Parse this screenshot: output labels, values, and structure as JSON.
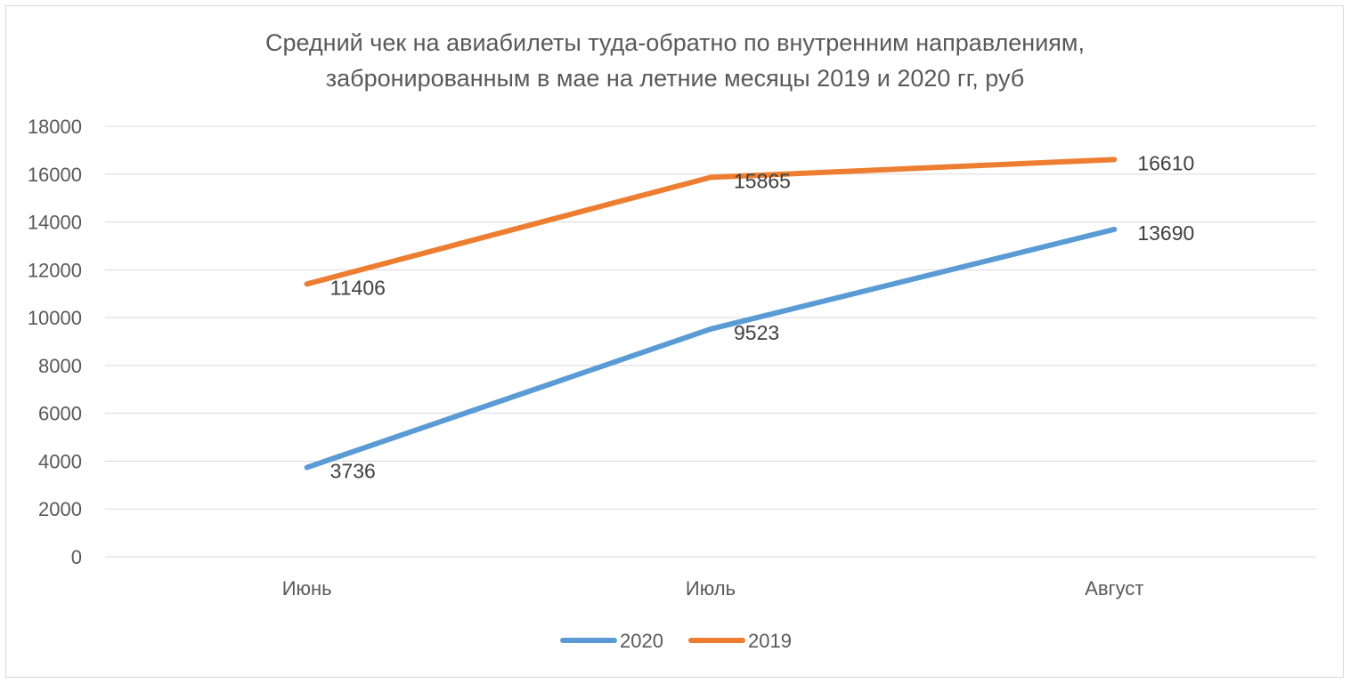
{
  "chart_data": {
    "type": "line",
    "title": "Средний чек на авиабилеты туда-обратно по внутренним направлениям,",
    "subtitle": "забронированным в мае на летние месяцы 2019 и 2020 гг, руб",
    "categories": [
      "Июнь",
      "Июль",
      "Август"
    ],
    "series": [
      {
        "name": "2020",
        "values": [
          3736,
          9523,
          13690
        ],
        "color": "#5b9bd5"
      },
      {
        "name": "2019",
        "values": [
          11406,
          15865,
          16610
        ],
        "color": "#ed7d31"
      }
    ],
    "ylim": [
      0,
      18000
    ],
    "yticks": [
      0,
      2000,
      4000,
      6000,
      8000,
      10000,
      12000,
      14000,
      16000,
      18000
    ],
    "grid": true,
    "legend_position": "bottom",
    "gridline_color": "#d9d9d9"
  }
}
